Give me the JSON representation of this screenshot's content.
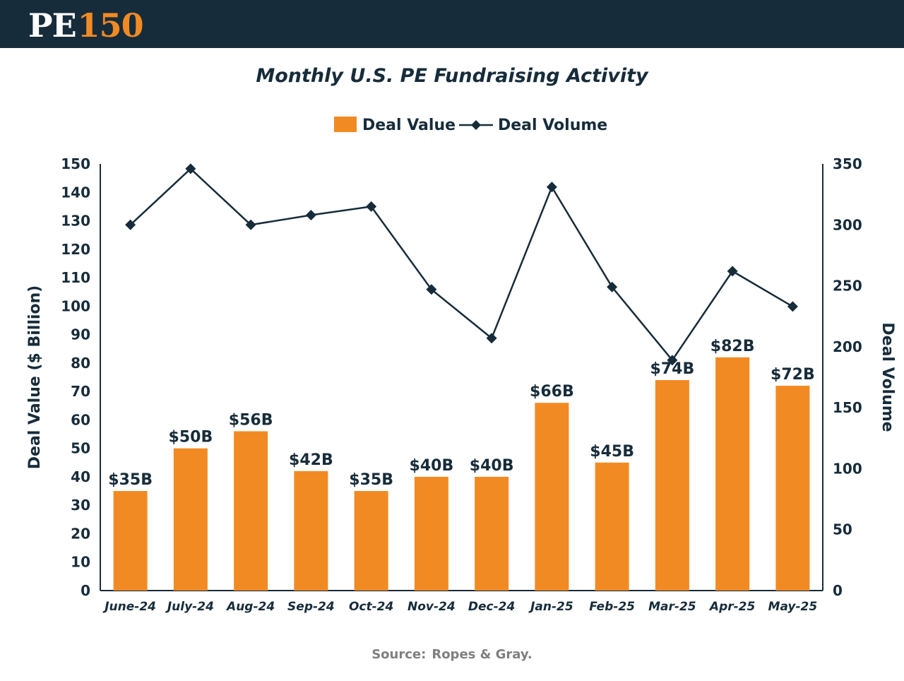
{
  "brand": {
    "logo_text_1": "PE",
    "logo_text_2": "150",
    "header_bg": "#172c3a",
    "accent": "#f28a23"
  },
  "source": {
    "label": "Source:",
    "text": "Ropes & Gray."
  },
  "chart_data": {
    "type": "bar",
    "title": "Monthly U.S. PE Fundraising Activity",
    "categories": [
      "June-24",
      "July-24",
      "Aug-24",
      "Sep-24",
      "Oct-24",
      "Nov-24",
      "Dec-24",
      "Jan-25",
      "Feb-25",
      "Mar-25",
      "Apr-25",
      "May-25"
    ],
    "series": [
      {
        "name": "Deal Value",
        "type": "bar",
        "axis": "left",
        "color": "#f28a23",
        "values": [
          35,
          50,
          56,
          42,
          35,
          40,
          40,
          66,
          45,
          74,
          82,
          72
        ],
        "labels": [
          "$35B",
          "$50B",
          "$56B",
          "$42B",
          "$35B",
          "$40B",
          "$40B",
          "$66B",
          "$45B",
          "$74B",
          "$82B",
          "$72B"
        ]
      },
      {
        "name": "Deal Volume",
        "type": "line",
        "axis": "right",
        "color": "#172c3a",
        "marker": "diamond",
        "values": [
          300,
          346,
          300,
          308,
          315,
          247,
          207,
          331,
          249,
          189,
          262,
          233
        ]
      }
    ],
    "ylabel": "Deal Value ($ Billion)",
    "ylabel_right": "Deal Volume",
    "ylim": [
      0,
      150
    ],
    "yticks": [
      0,
      10,
      20,
      30,
      40,
      50,
      60,
      70,
      80,
      90,
      100,
      110,
      120,
      130,
      140,
      150
    ],
    "ylim_right": [
      0,
      350
    ],
    "yticks_right": [
      0,
      50,
      100,
      150,
      200,
      250,
      300,
      350
    ],
    "legend_position": "top-center",
    "grid": false
  }
}
